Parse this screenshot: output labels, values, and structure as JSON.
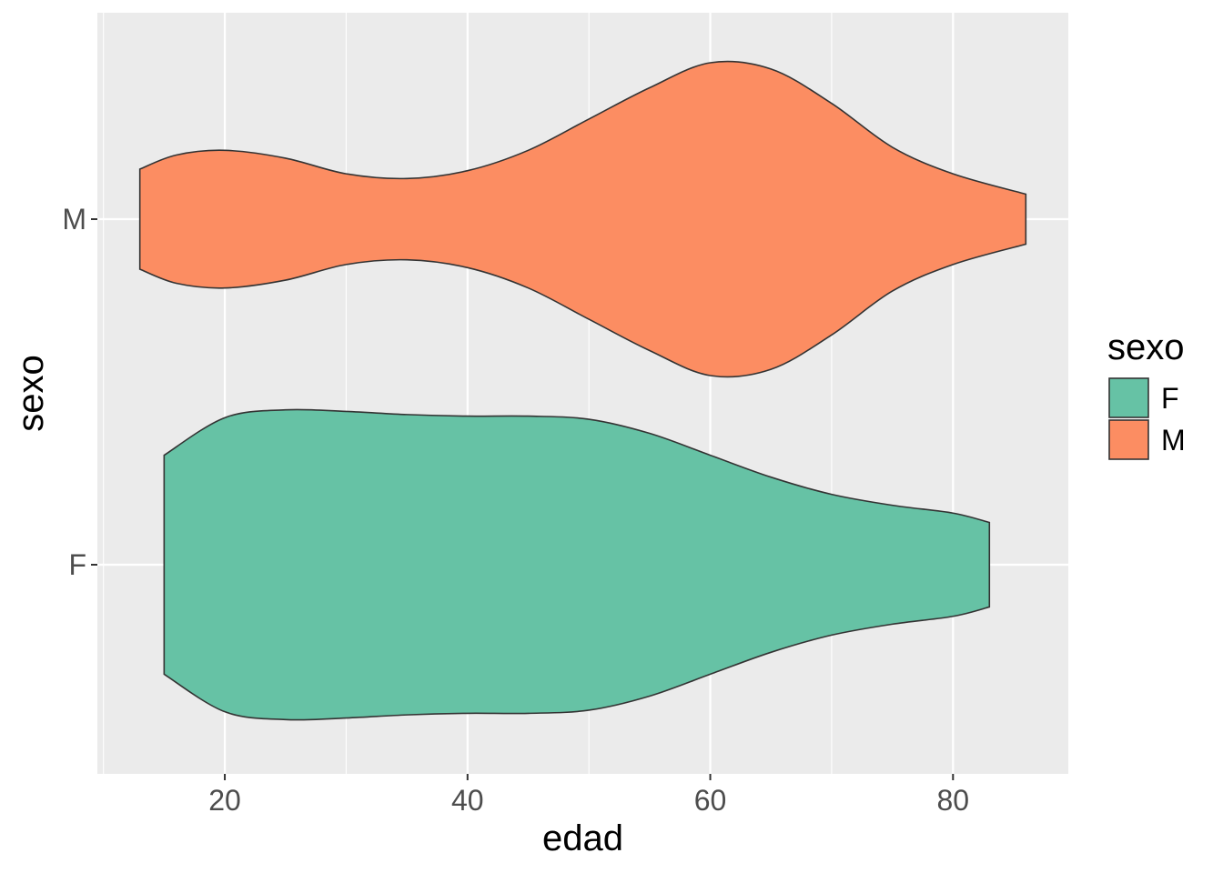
{
  "chart_data": {
    "type": "violin",
    "orientation": "horizontal",
    "xlabel": "edad",
    "ylabel": "sexo",
    "xlim": [
      9.5,
      89.5
    ],
    "x_ticks": [
      20,
      40,
      60,
      80
    ],
    "x_tick_labels": [
      "20",
      "40",
      "60",
      "80"
    ],
    "categories": [
      "F",
      "M"
    ],
    "grid": true,
    "legend": {
      "title": "sexo",
      "position": "right",
      "entries": [
        {
          "label": "F",
          "color": "#66C2A5"
        },
        {
          "label": "M",
          "color": "#FC8D62"
        }
      ]
    },
    "series": [
      {
        "name": "F",
        "color": "#66C2A5",
        "min": 15,
        "max": 83,
        "density_profile": [
          [
            15,
            0.7
          ],
          [
            20,
            0.94
          ],
          [
            25,
            0.99
          ],
          [
            30,
            0.98
          ],
          [
            35,
            0.96
          ],
          [
            40,
            0.95
          ],
          [
            45,
            0.95
          ],
          [
            50,
            0.93
          ],
          [
            55,
            0.84
          ],
          [
            60,
            0.7
          ],
          [
            65,
            0.56
          ],
          [
            70,
            0.45
          ],
          [
            75,
            0.38
          ],
          [
            80,
            0.33
          ],
          [
            83,
            0.27
          ]
        ]
      },
      {
        "name": "M",
        "color": "#FC8D62",
        "min": 13,
        "max": 86,
        "density_profile": [
          [
            13,
            0.32
          ],
          [
            16,
            0.41
          ],
          [
            20,
            0.44
          ],
          [
            25,
            0.39
          ],
          [
            30,
            0.29
          ],
          [
            35,
            0.26
          ],
          [
            40,
            0.31
          ],
          [
            45,
            0.44
          ],
          [
            50,
            0.64
          ],
          [
            55,
            0.84
          ],
          [
            60,
            1.0
          ],
          [
            65,
            0.96
          ],
          [
            70,
            0.74
          ],
          [
            75,
            0.46
          ],
          [
            80,
            0.29
          ],
          [
            86,
            0.16
          ]
        ]
      }
    ]
  }
}
